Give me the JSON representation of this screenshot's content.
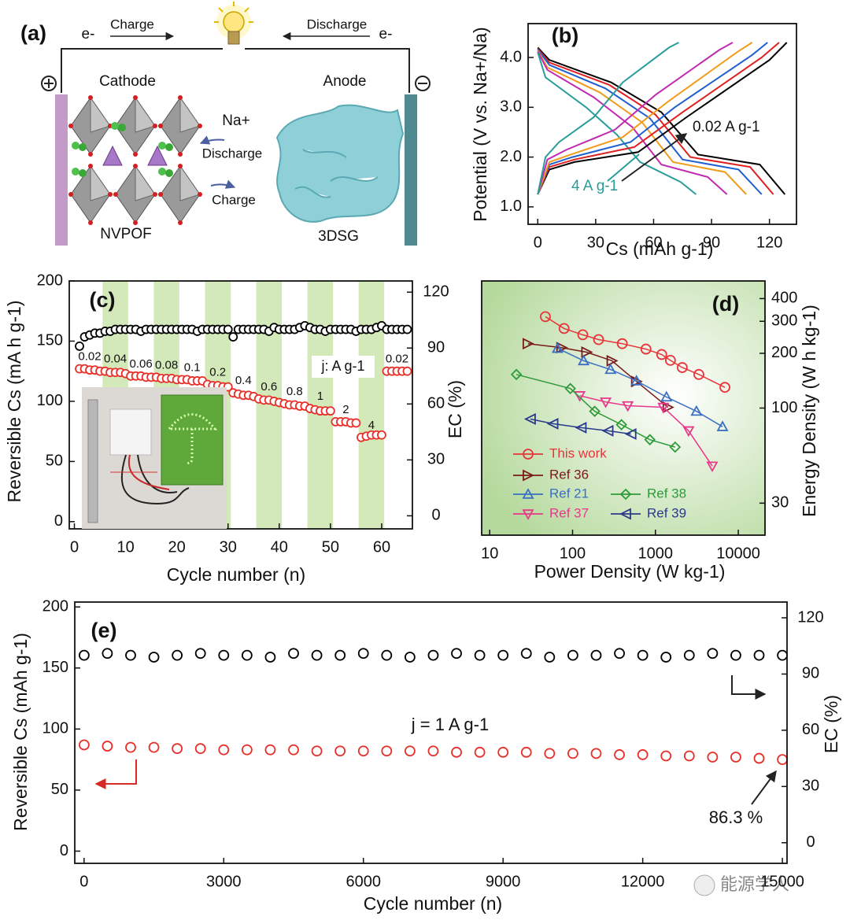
{
  "schematic": {
    "panel_label": "(a)",
    "electron_left": "e-",
    "charge_label": "Charge",
    "discharge_label": "Discharge",
    "electron_right": "e-",
    "cathode": "Cathode",
    "anode": "Anode",
    "ion": "Na+",
    "ion_discharge": "Discharge",
    "ion_charge": "Charge",
    "cathode_material": "NVPOF",
    "anode_material": "3DSG"
  },
  "watermark": "能源学人",
  "chart_data": [
    {
      "type": "line",
      "panel_label": "(b)",
      "xlabel": "Cs (mAh g-1)",
      "ylabel": "Potential (V vs. Na+/Na)",
      "xlim": [
        -5,
        134
      ],
      "ylim": [
        0.65,
        4.68
      ],
      "xticks": [
        0,
        30,
        60,
        90,
        120
      ],
      "yticks": [
        {
          "value": 1,
          "label": "1.0"
        },
        {
          "value": 2,
          "label": "2.0"
        },
        {
          "value": 3,
          "label": "3.0"
        },
        {
          "value": 4,
          "label": "4.0"
        }
      ],
      "annotations": [
        "0.02 A g-1",
        "4 A g-1"
      ],
      "series": [
        {
          "color": "#000000",
          "x": [
            0,
            6,
            38,
            64,
            83,
            115,
            128
          ],
          "values": [
            4.2,
            3.95,
            3.5,
            2.9,
            2.05,
            1.85,
            1.25
          ]
        },
        {
          "color": "#e02020",
          "x": [
            0,
            6,
            37,
            61,
            79,
            110,
            122
          ],
          "values": [
            4.18,
            3.9,
            3.45,
            2.85,
            2.0,
            1.8,
            1.25
          ]
        },
        {
          "color": "#1f5fd0",
          "x": [
            0,
            6,
            35,
            58,
            75,
            104,
            116
          ],
          "values": [
            4.16,
            3.85,
            3.38,
            2.78,
            1.95,
            1.75,
            1.25
          ]
        },
        {
          "color": "#f29b1a",
          "x": [
            0,
            5,
            32,
            54,
            70,
            97,
            108
          ],
          "values": [
            4.14,
            3.8,
            3.3,
            2.7,
            1.9,
            1.7,
            1.25
          ]
        },
        {
          "color": "#c02ab0",
          "x": [
            0,
            5,
            29,
            49,
            64,
            88,
            98
          ],
          "values": [
            4.12,
            3.75,
            3.2,
            2.6,
            1.85,
            1.6,
            1.25
          ]
        },
        {
          "color": "#2a9d9a",
          "x": [
            0,
            4,
            25,
            41,
            53,
            74,
            82
          ],
          "values": [
            4.1,
            3.6,
            3.0,
            2.45,
            1.9,
            1.5,
            1.25
          ]
        },
        {
          "color": "#000000",
          "x": [
            0,
            6,
            19,
            52,
            77,
            120,
            129
          ],
          "values": [
            1.25,
            1.75,
            1.9,
            2.1,
            2.8,
            3.95,
            4.3
          ]
        },
        {
          "color": "#e02020",
          "x": [
            0,
            6,
            19,
            50,
            75,
            116,
            125
          ],
          "values": [
            1.25,
            1.8,
            1.95,
            2.2,
            2.9,
            4.0,
            4.3
          ]
        },
        {
          "color": "#1f5fd0",
          "x": [
            0,
            6,
            18,
            48,
            71,
            111,
            119
          ],
          "values": [
            1.25,
            1.85,
            2.0,
            2.3,
            3.0,
            4.05,
            4.3
          ]
        },
        {
          "color": "#f29b1a",
          "x": [
            0,
            6,
            17,
            44,
            67,
            103,
            111
          ],
          "values": [
            1.25,
            1.9,
            2.05,
            2.4,
            3.1,
            4.1,
            4.3
          ]
        },
        {
          "color": "#c02ab0",
          "x": [
            0,
            5,
            15,
            40,
            61,
            94,
            101
          ],
          "values": [
            1.25,
            1.95,
            2.15,
            2.55,
            3.25,
            4.15,
            4.3
          ]
        },
        {
          "color": "#2a9d9a",
          "x": [
            0,
            4,
            11,
            29,
            44,
            68,
            73
          ],
          "values": [
            1.25,
            2.0,
            2.3,
            2.8,
            3.5,
            4.2,
            4.3
          ]
        }
      ]
    },
    {
      "type": "scatter",
      "panel_label": "(c)",
      "xlabel": "Cycle number (n)",
      "ylabel": "Reversible Cs (mA h g-1)",
      "y2label": "EC (%)",
      "xlim": [
        -1,
        66
      ],
      "ylim": [
        -6,
        200
      ],
      "y2lim": [
        -7,
        126
      ],
      "xticks": [
        0,
        10,
        20,
        30,
        40,
        50,
        60
      ],
      "yticks": [
        0,
        50,
        100,
        150,
        200
      ],
      "y2ticks": [
        0,
        30,
        60,
        90,
        120
      ],
      "rate_labels": [
        "0.02",
        "0.04",
        "0.06",
        "0.08",
        "0.1",
        "0.2",
        "0.4",
        "0.6",
        "0.8",
        "1",
        "2",
        "4",
        "0.02"
      ],
      "rate_unit_label": "j: A g-1",
      "x": [
        1,
        2,
        3,
        4,
        5,
        6,
        7,
        8,
        9,
        10,
        11,
        12,
        13,
        14,
        15,
        16,
        17,
        18,
        19,
        20,
        21,
        22,
        23,
        24,
        25,
        26,
        27,
        28,
        29,
        30,
        31,
        32,
        33,
        34,
        35,
        36,
        37,
        38,
        39,
        40,
        41,
        42,
        43,
        44,
        45,
        46,
        47,
        48,
        49,
        50,
        51,
        52,
        53,
        54,
        55,
        56,
        57,
        58,
        59,
        60,
        61,
        62,
        63,
        64,
        65
      ],
      "series": [
        {
          "color": "#e8302a",
          "values": [
            127,
            127,
            126,
            126,
            125,
            125,
            124,
            124,
            124,
            123,
            121,
            121,
            121,
            120,
            120,
            120,
            119,
            119,
            119,
            118,
            118,
            118,
            117,
            117,
            117,
            114,
            113,
            113,
            112,
            112,
            107,
            106,
            105,
            105,
            104,
            102,
            101,
            101,
            100,
            99,
            98,
            97,
            97,
            96,
            96,
            94,
            93,
            92,
            92,
            92,
            83,
            83,
            83,
            82,
            82,
            70,
            71,
            72,
            72,
            72,
            125,
            125,
            125,
            125,
            125
          ]
        },
        {
          "color": "#000000",
          "axis": "y2",
          "values": [
            91,
            96,
            97,
            98,
            98,
            99,
            99,
            100,
            100,
            100,
            100,
            100,
            99,
            100,
            100,
            100,
            100,
            100,
            100,
            100,
            100,
            100,
            100,
            99,
            100,
            100,
            100,
            100,
            100,
            100,
            96,
            100,
            100,
            100,
            100,
            100,
            100,
            99,
            101,
            100,
            100,
            100,
            100,
            101,
            102,
            101,
            100,
            100,
            99,
            100,
            100,
            100,
            100,
            100,
            99,
            100,
            100,
            100,
            101,
            102,
            100,
            100,
            100,
            100,
            100
          ]
        }
      ]
    },
    {
      "type": "line",
      "panel_label": "(d)",
      "xlabel": "Power Density  (W kg-1)",
      "ylabel": "Energy Density  (W h kg-1)",
      "log_x": true,
      "log_y": true,
      "y_axis_side": "right",
      "xlim": [
        8,
        21000
      ],
      "ylim": [
        20,
        500
      ],
      "xticks": [
        10,
        100,
        1000,
        10000
      ],
      "yticks": [
        30,
        100,
        200,
        300,
        400
      ],
      "series": [
        {
          "name": "This work",
          "color": "#e8343a",
          "marker": "circle",
          "x": [
            47,
            79,
            133,
            206,
            398,
            769,
            1191,
            1517,
            2109,
            3342,
            6890
          ],
          "values": [
            318,
            274,
            253,
            238,
            226,
            211,
            197,
            183,
            167,
            153,
            130
          ]
        },
        {
          "name": "Ref 36",
          "color": "#7a1a1a",
          "marker": "triangle-right",
          "x": [
            29,
            74,
            148,
            299,
            590,
            1420
          ],
          "values": [
            226,
            215,
            203,
            182,
            140,
            101
          ]
        },
        {
          "name": "Ref 21",
          "color": "#3a6fc4",
          "marker": "triangle-up",
          "x": [
            66,
            136,
            287,
            590,
            1358,
            3126,
            6450
          ],
          "values": [
            213,
            182,
            163,
            141,
            115,
            96,
            79
          ]
        },
        {
          "name": "Ref 37",
          "color": "#e8388a",
          "marker": "triangle-down",
          "x": [
            122,
            251,
            464,
            1245,
            2512,
            4853
          ],
          "values": [
            117,
            108,
            103,
            101,
            75,
            48
          ]
        },
        {
          "name": "Ref 38",
          "color": "#2f9a3a",
          "marker": "diamond",
          "x": [
            21,
            94,
            185,
            389,
            857,
            1730
          ],
          "values": [
            153,
            128,
            96,
            81,
            67,
            61
          ]
        },
        {
          "name": "Ref 39",
          "color": "#2a3a8a",
          "marker": "triangle-left",
          "x": [
            31,
            58,
            127,
            268,
            507
          ],
          "values": [
            87,
            82,
            78,
            75,
            72
          ]
        }
      ]
    },
    {
      "type": "scatter",
      "panel_label": "(e)",
      "xlabel": "Cycle number (n)",
      "ylabel": "Reversible Cs (mAh g-1)",
      "y2label": "EC  (%)",
      "xlim": [
        -200,
        15100
      ],
      "ylim": [
        -10,
        204
      ],
      "y2lim": [
        -11,
        128.4
      ],
      "xticks": [
        0,
        3000,
        6000,
        9000,
        12000,
        15000
      ],
      "yticks": [
        0,
        50,
        100,
        150,
        200
      ],
      "y2ticks": [
        0,
        30,
        60,
        90,
        120
      ],
      "annotations": [
        "j = 1 A g-1",
        "86.3 %"
      ],
      "x": [
        1,
        500,
        1000,
        1500,
        2000,
        2500,
        3000,
        3500,
        4000,
        4500,
        5000,
        5500,
        6000,
        6500,
        7000,
        7500,
        8000,
        8500,
        9000,
        9500,
        10000,
        10500,
        11000,
        11500,
        12000,
        12500,
        13000,
        13500,
        14000,
        14500,
        15000
      ],
      "series": [
        {
          "color": "#e8302a",
          "values": [
            87,
            86,
            85,
            85,
            84,
            84,
            83,
            83,
            83,
            83,
            82,
            82,
            82,
            82,
            82,
            82,
            81,
            81,
            81,
            81,
            80,
            80,
            80,
            79,
            79,
            78,
            78,
            77,
            77,
            76,
            75
          ]
        },
        {
          "color": "#000000",
          "axis": "y2",
          "values": [
            100,
            101,
            100,
            99,
            100,
            101,
            100,
            100,
            99,
            101,
            100,
            100,
            101,
            100,
            99,
            100,
            101,
            100,
            100,
            101,
            99,
            100,
            100,
            101,
            100,
            99,
            100,
            101,
            100,
            100,
            100
          ]
        }
      ]
    }
  ]
}
